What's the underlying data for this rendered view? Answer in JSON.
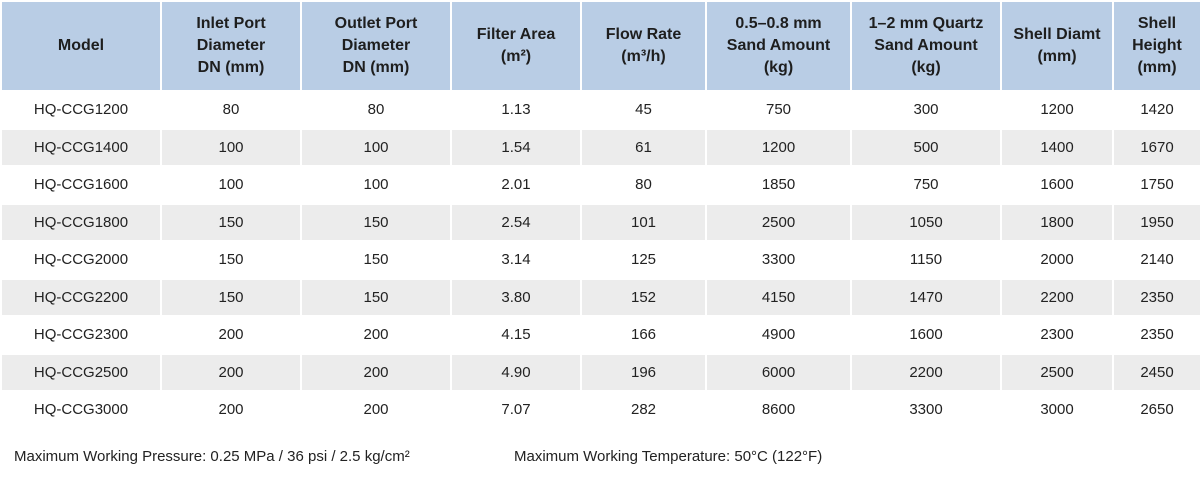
{
  "table": {
    "header": [
      "Model",
      "Inlet Port\nDiameter\nDN (mm)",
      "Outlet Port\nDiameter\nDN (mm)",
      "Filter Area\n(m²)",
      "Flow Rate\n(m³/h)",
      "0.5–0.8 mm\nSand Amount\n(kg)",
      "1–2 mm Quartz\nSand Amount\n(kg)",
      "Shell Diamt\n(mm)",
      "Shell\nHeight\n(mm)"
    ],
    "rows": [
      [
        "HQ-CCG1200",
        "80",
        "80",
        "1.13",
        "45",
        "750",
        "300",
        "1200",
        "1420"
      ],
      [
        "HQ-CCG1400",
        "100",
        "100",
        "1.54",
        "61",
        "1200",
        "500",
        "1400",
        "1670"
      ],
      [
        "HQ-CCG1600",
        "100",
        "100",
        "2.01",
        "80",
        "1850",
        "750",
        "1600",
        "1750"
      ],
      [
        "HQ-CCG1800",
        "150",
        "150",
        "2.54",
        "101",
        "2500",
        "1050",
        "1800",
        "1950"
      ],
      [
        "HQ-CCG2000",
        "150",
        "150",
        "3.14",
        "125",
        "3300",
        "1150",
        "2000",
        "2140"
      ],
      [
        "HQ-CCG2200",
        "150",
        "150",
        "3.80",
        "152",
        "4150",
        "1470",
        "2200",
        "2350"
      ],
      [
        "HQ-CCG2300",
        "200",
        "200",
        "4.15",
        "166",
        "4900",
        "1600",
        "2300",
        "2350"
      ],
      [
        "HQ-CCG2500",
        "200",
        "200",
        "4.90",
        "196",
        "6000",
        "2200",
        "2500",
        "2450"
      ],
      [
        "HQ-CCG3000",
        "200",
        "200",
        "7.07",
        "282",
        "8600",
        "3300",
        "3000",
        "2650"
      ]
    ]
  },
  "footer": {
    "pressure": "Maximum Working Pressure: 0.25 MPa / 36 psi / 2.5 kg/cm²",
    "temperature": "Maximum Working Temperature: 50°C (122°F)"
  }
}
